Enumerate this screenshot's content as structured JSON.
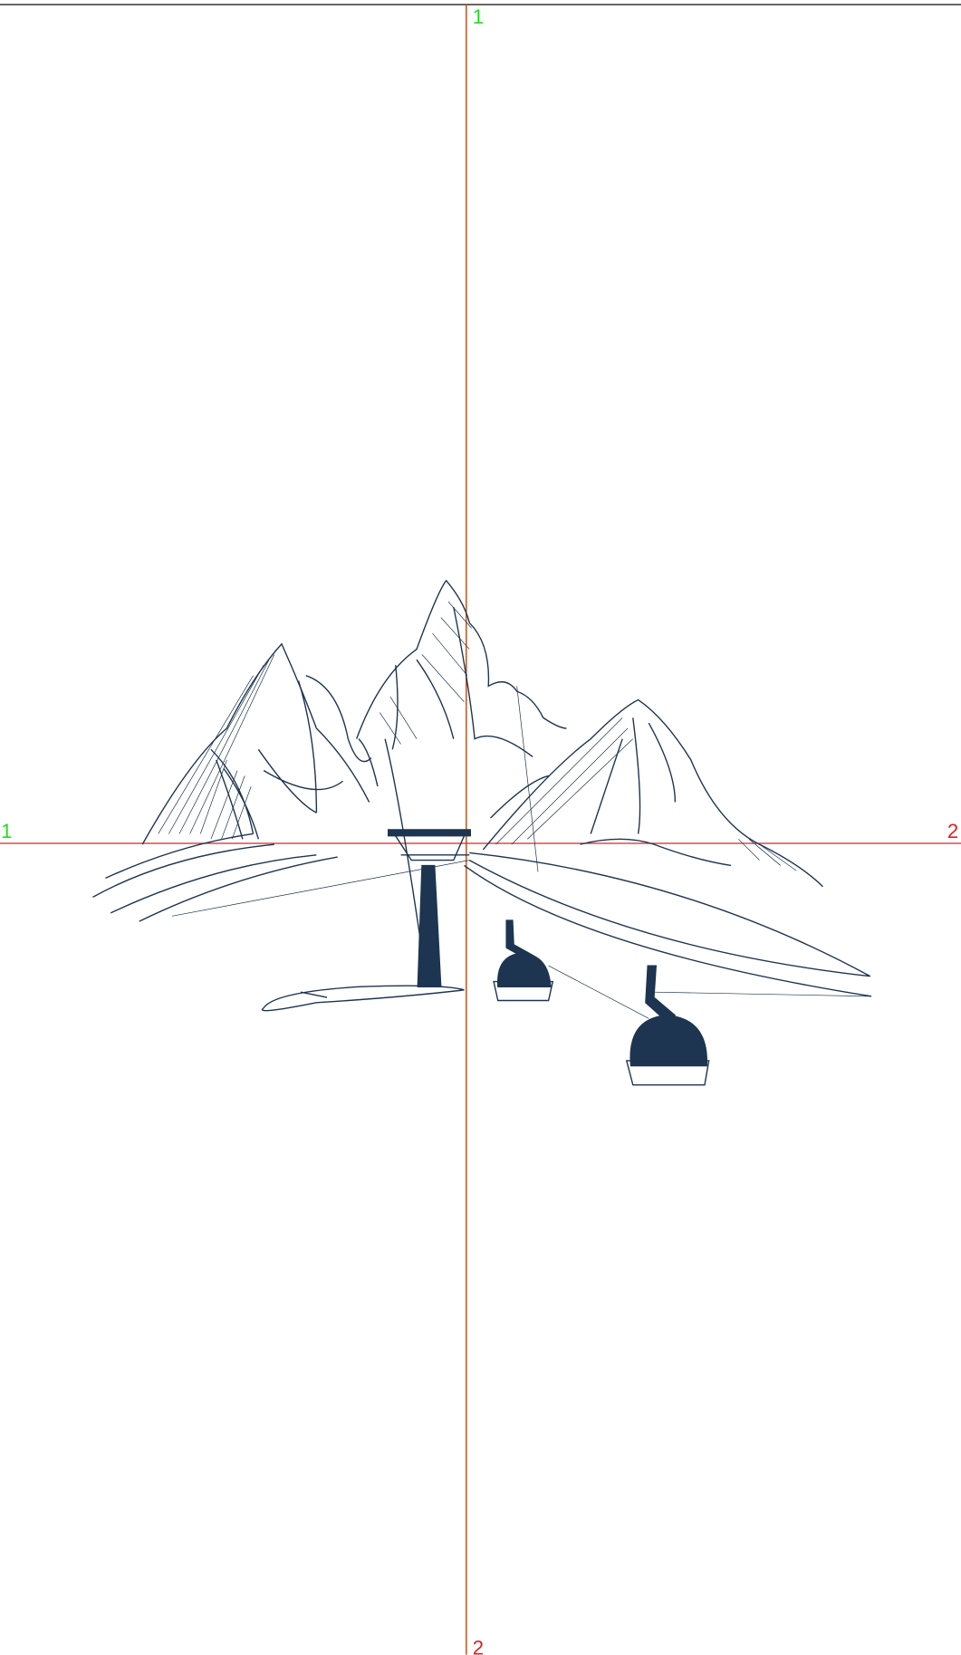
{
  "axes": {
    "vertical": {
      "start_label": "1",
      "end_label": "2"
    },
    "horizontal": {
      "start_label": "1",
      "end_label": "2"
    }
  }
}
